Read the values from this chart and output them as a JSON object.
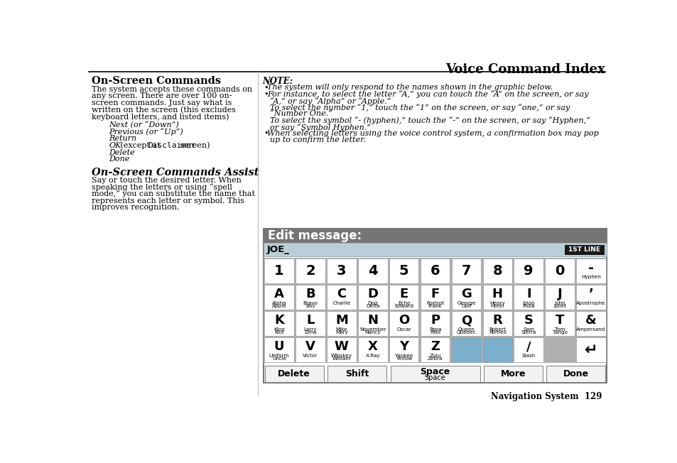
{
  "title": "Voice Command Index",
  "page_number": "Navigation System  129",
  "left_lines": {
    "heading1": "On-Screen Commands",
    "para1_lines": [
      "The system accepts these commands on",
      "any screen. There are over 100 on-",
      "screen commands. Just say what is",
      "written on the screen (this excludes",
      "keyboard letters, and listed items)"
    ],
    "list_items": [
      {
        "italic": "Next",
        "normal": " (or “Down”)"
      },
      {
        "italic": "Previous",
        "normal": " (or “Up”)"
      },
      {
        "italic": "Return",
        "normal": ""
      },
      {
        "italic": "OK",
        "normal": " (except at ",
        "disclaimer": true
      },
      {
        "italic": "Delete",
        "normal": ""
      },
      {
        "italic": "Done",
        "normal": ""
      }
    ],
    "heading2": "On-Screen Commands Assist",
    "para2_lines": [
      "Say or touch the desired letter. When",
      "speaking the letters or using “spell",
      "mode,” you can substitute the name that",
      "represents each letter or symbol. This",
      "improves recognition."
    ]
  },
  "note_lines": [
    {
      "bullet": true,
      "text": "The system will only respond to the names shown in the graphic below."
    },
    {
      "bullet": true,
      "text": "For instance, to select the letter “A,” you can touch the “A” on the screen, or say"
    },
    {
      "bullet": false,
      "text": "“A,” or say “Alpha” or “Apple.”"
    },
    {
      "bullet": false,
      "text": "To select the number “1,” touch the “1” on the screen, or say “one,” or say"
    },
    {
      "bullet": false,
      "text": "“Number One.”"
    },
    {
      "bullet": false,
      "text": "To select the symbol “- (hyphen),” touch the “-” on the screen, or say “Hyphen,”"
    },
    {
      "bullet": false,
      "text": "or say “Symbol Hyphen.”"
    },
    {
      "bullet": true,
      "text": "When selecting letters using the voice control system, a confirmation box may pop"
    },
    {
      "bullet": false,
      "text": "up to confirm the letter."
    }
  ],
  "keyboard": {
    "header_text": "Edit message:",
    "header_bg": "#757575",
    "input_text": "JOE_",
    "input_bg": "#b8cfd8",
    "line_btn_text": "1ST LINE",
    "line_btn_bg": "#1a1a1a",
    "rows": [
      [
        {
          "main": "1",
          "sub": ""
        },
        {
          "main": "2",
          "sub": ""
        },
        {
          "main": "3",
          "sub": ""
        },
        {
          "main": "4",
          "sub": ""
        },
        {
          "main": "5",
          "sub": ""
        },
        {
          "main": "6",
          "sub": ""
        },
        {
          "main": "7",
          "sub": ""
        },
        {
          "main": "8",
          "sub": ""
        },
        {
          "main": "9",
          "sub": ""
        },
        {
          "main": "0",
          "sub": ""
        },
        {
          "main": "-",
          "sub": "Hyphen"
        }
      ],
      [
        {
          "main": "A",
          "sub": "Alpha\nApple"
        },
        {
          "main": "B",
          "sub": "Bravo\nBoy"
        },
        {
          "main": "C",
          "sub": "Charlie"
        },
        {
          "main": "D",
          "sub": "Dog\nDelta"
        },
        {
          "main": "E",
          "sub": "Echo\nEdward"
        },
        {
          "main": "F",
          "sub": "Foxtrot\nFrank"
        },
        {
          "main": "G",
          "sub": "George\nGolf"
        },
        {
          "main": "H",
          "sub": "Henry\nHotel"
        },
        {
          "main": "I",
          "sub": "Igloo\nIndia"
        },
        {
          "main": "J",
          "sub": "John\nJuliet"
        },
        {
          "main": "’",
          "sub": "Apostrophe"
        }
      ],
      [
        {
          "main": "K",
          "sub": "King\nKilo"
        },
        {
          "main": "L",
          "sub": "Larry\nLima"
        },
        {
          "main": "M",
          "sub": "Mike\nMary"
        },
        {
          "main": "N",
          "sub": "November\nNancy"
        },
        {
          "main": "O",
          "sub": "Oscar"
        },
        {
          "main": "P",
          "sub": "Papa\nPaul"
        },
        {
          "main": "Q",
          "sub": "Queen\nQuebec"
        },
        {
          "main": "R",
          "sub": "Robert\nRomeo"
        },
        {
          "main": "S",
          "sub": "Sam\nSierra"
        },
        {
          "main": "T",
          "sub": "Tom\nTango"
        },
        {
          "main": "&",
          "sub": "Ampersand"
        }
      ],
      [
        {
          "main": "U",
          "sub": "Uniform\nUncle",
          "col": 0
        },
        {
          "main": "V",
          "sub": "Victor",
          "col": 1
        },
        {
          "main": "W",
          "sub": "Whiskey\nWilliam",
          "col": 2
        },
        {
          "main": "X",
          "sub": "X-Ray",
          "col": 3
        },
        {
          "main": "Y",
          "sub": "Yankee\nYellow",
          "col": 4
        },
        {
          "main": "Z",
          "sub": "Zulu\nZebra",
          "col": 5
        },
        {
          "main": "",
          "sub": "",
          "col": 6,
          "bg": "#7ab0cc"
        },
        {
          "main": "",
          "sub": "",
          "col": 7,
          "bg": "#7ab0cc"
        },
        {
          "main": "/",
          "sub": "Slash",
          "col": 8
        },
        {
          "main": "↵",
          "sub": "",
          "col": 10,
          "is_return": true
        }
      ]
    ],
    "bottom_keys": [
      {
        "label": "Delete",
        "weight": 2
      },
      {
        "label": "Shift",
        "weight": 2
      },
      {
        "label": "Space",
        "sublabel": "Space",
        "weight": 3
      },
      {
        "label": "More",
        "weight": 2
      },
      {
        "label": "Done",
        "weight": 2
      }
    ]
  }
}
